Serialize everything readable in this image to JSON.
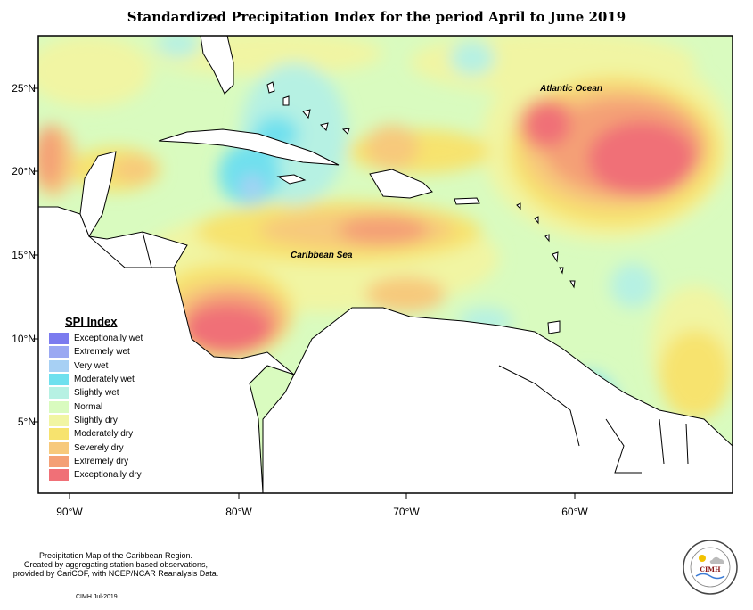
{
  "title": "Standardized Precipitation Index for the period April to June 2019",
  "map_labels": {
    "atlantic": "Atlantic Ocean",
    "caribbean": "Caribbean Sea"
  },
  "axes": {
    "longitude_ticks": [
      "90°W",
      "80°W",
      "70°W",
      "60°W"
    ],
    "latitude_ticks": [
      "25°N",
      "20°N",
      "15°N",
      "10°N",
      "5°N"
    ]
  },
  "legend": {
    "title": "SPI Index",
    "items": [
      {
        "label": "Exceptionally wet",
        "color": "#7b7bef"
      },
      {
        "label": "Extremely wet",
        "color": "#9aa8f2"
      },
      {
        "label": "Very wet",
        "color": "#a7d0f4"
      },
      {
        "label": "Moderately wet",
        "color": "#6fe0ee"
      },
      {
        "label": "Slightly wet",
        "color": "#b6f1e3"
      },
      {
        "label": "Normal",
        "color": "#d9fbbf"
      },
      {
        "label": "Slightly dry",
        "color": "#f1f5a3"
      },
      {
        "label": "Moderately dry",
        "color": "#f7e36e"
      },
      {
        "label": "Severely dry",
        "color": "#f7c97c"
      },
      {
        "label": "Extremely dry",
        "color": "#f4a076"
      },
      {
        "label": "Exceptionally dry",
        "color": "#f07077"
      }
    ]
  },
  "footer": {
    "line1": "Precipitation Map of the Caribbean Region.",
    "line2": "Created by aggregating station based observations,",
    "line3": "provided by CariCOF, with NCEP/NCAR Reanalysis Data.",
    "credit": "CIMH Jul-2019"
  },
  "logo": {
    "text": "CIMH"
  }
}
